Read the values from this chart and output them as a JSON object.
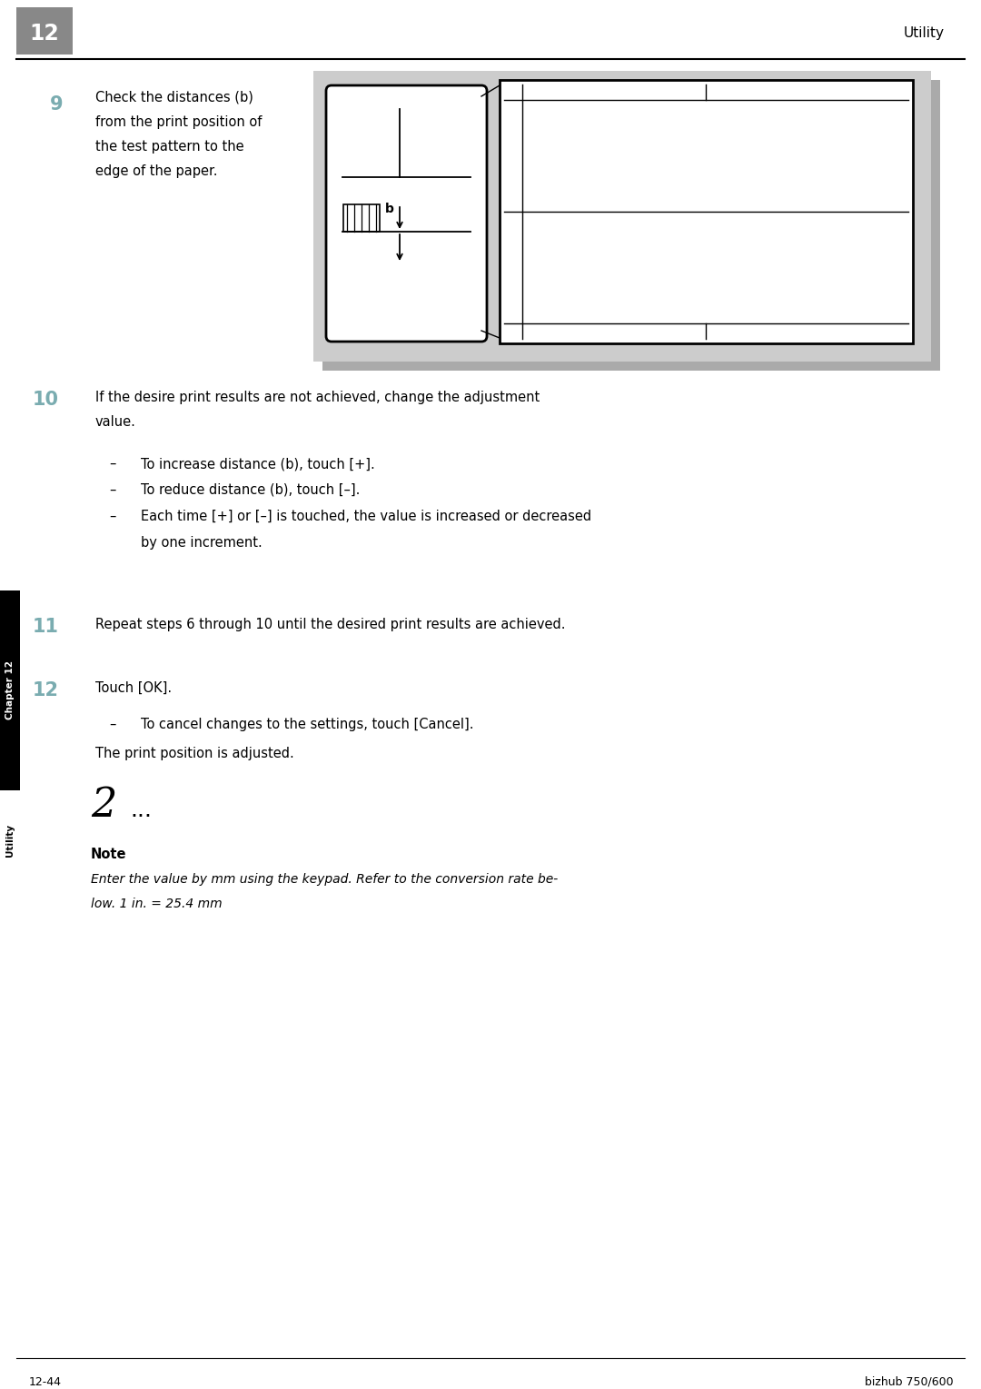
{
  "page_width": 10.8,
  "page_height": 15.29,
  "bg_color": "#ffffff",
  "header_num": "12",
  "header_num_bg": "#888888",
  "header_text": "Utility",
  "step9_num": "9",
  "step9_num_color": "#7aacb0",
  "step9_text_line1": "Check the distances (b)",
  "step9_text_line2": "from the print position of",
  "step9_text_line3": "the test pattern to the",
  "step9_text_line4": "edge of the paper.",
  "step10_num": "10",
  "step10_num_color": "#7aacb0",
  "step10_text_line1": "If the desire print results are not achieved, change the adjustment",
  "step10_text_line2": "value.",
  "step10_bullet1": "To increase distance (b), touch [+].",
  "step10_bullet2": "To reduce distance (b), touch [–].",
  "step10_bullet3": "Each time [+] or [–] is touched, the value is increased or decreased",
  "step10_bullet3b": "by one increment.",
  "step11_num": "11",
  "step11_num_color": "#7aacb0",
  "step11_text": "Repeat steps 6 through 10 until the desired print results are achieved.",
  "step12_num": "12",
  "step12_num_color": "#7aacb0",
  "step12_text": "Touch [OK].",
  "step12_bullet1": "To cancel changes to the settings, touch [Cancel].",
  "step12_text2": "The print position is adjusted.",
  "note_symbol": "2",
  "note_dots": "...",
  "note_label": "Note",
  "note_text_line1": "Enter the value by mm using the keypad. Refer to the conversion rate be-",
  "note_text_line2": "low. 1 in. = 25.4 mm",
  "sidebar_chapter": "Chapter 12",
  "sidebar_utility": "Utility",
  "footer_left": "12-44",
  "footer_right": "bizhub 750/600",
  "sidebar_bg": "#000000",
  "sidebar_text_color": "#ffffff",
  "diagram_bg": "#cccccc",
  "diagram_shadow": "#aaaaaa"
}
